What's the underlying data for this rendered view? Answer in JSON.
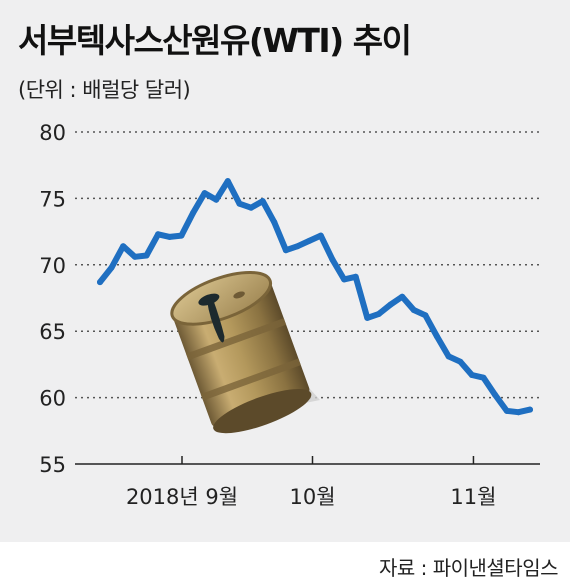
{
  "title": "서부텍사스산원유(WTI) 추이",
  "unit": "(단위 : 배럴당 달러)",
  "source": "자료 : 파이낸셜타임스",
  "chart_data": {
    "type": "line",
    "ylim": [
      55,
      80
    ],
    "yticks": [
      80,
      75,
      70,
      65,
      60,
      55
    ],
    "grid": "horizontal-dotted",
    "line_color": "#1f6fc1",
    "xticks": [
      {
        "label": "2018년 9월",
        "pos": 0.2
      },
      {
        "label": "10월",
        "pos": 0.5
      },
      {
        "label": "11월",
        "pos": 0.87
      }
    ],
    "series": [
      {
        "values": [
          68.7,
          69.8,
          71.4,
          70.6,
          70.7,
          72.3,
          72.1,
          72.2,
          73.9,
          75.4,
          74.9,
          76.3,
          74.6,
          74.3,
          74.8,
          73.2,
          71.1,
          71.4,
          71.8,
          72.2,
          70.4,
          68.9,
          69.1,
          66.0,
          66.3,
          67.0,
          67.6,
          66.6,
          66.2,
          64.6,
          63.1,
          62.7,
          61.7,
          61.5,
          60.2,
          59.0,
          58.9,
          59.1
        ]
      }
    ]
  }
}
